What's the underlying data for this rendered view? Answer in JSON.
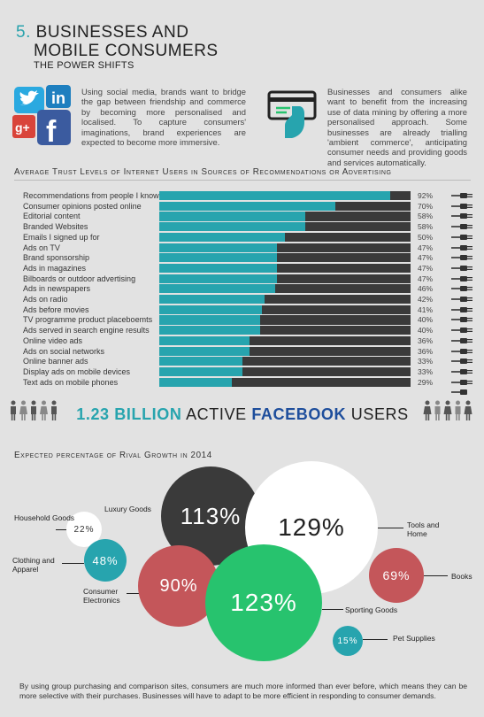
{
  "header": {
    "number": "5.",
    "title_line1": "Businesses and",
    "title_line2": "Mobile Consumers",
    "subtitle": "The Power Shifts"
  },
  "intro": {
    "left_text": "Using social media, brands want to bridge the gap between friendship and commerce by becoming more personalised and localised. To capture consumers' imaginations, brand experiences are expected to become more immersive.",
    "right_text": "Businesses and consumers alike want to benefit from the increasing use of data mining by offering a more personalised approach. Some businesses are already trialling 'ambient commerce', anticipating consumer needs and providing goods and services automatically."
  },
  "trust_section": {
    "heading": "Average Trust Levels of Internet Users in Sources of Recommendations or Advertising"
  },
  "facebook": {
    "number": "1.23 billion",
    "active": "active",
    "brand": "Facebook",
    "users": "users"
  },
  "growth_section": {
    "heading": "Expected percentage of Rival Growth in 2014"
  },
  "footer": {
    "text": "By using group purchasing and comparison sites, consumers are much more informed than ever before, which means they can be more selective with their purchases. Businesses will have to adapt to be more efficient in responding to consumer demands."
  },
  "colors": {
    "teal": "#27a4ae",
    "dark": "#3a3a3a",
    "red": "#c4565a",
    "green": "#27c36e",
    "white": "#ffffff"
  },
  "chart_data": [
    {
      "type": "bar",
      "title": "Average Trust Levels of Internet Users in Sources of Recommendations or Advertising",
      "categories": [
        "Recommendations from people I know",
        "Consumer opinions posted online",
        "Editorial content",
        "Branded Websites",
        "Emails I signed up for",
        "Ads on TV",
        "Brand sponsorship",
        "Ads in magazines",
        "Bilboards or outdoor advertising",
        "Ads in newspapers",
        "Ads on radio",
        "Ads before movies",
        "TV programme product placeboemts",
        "Ads served in search engine results",
        "Online video ads",
        "Ads on social networks",
        "Online banner ads",
        "Display ads on mobile devices",
        "Text ads on mobile phones"
      ],
      "values": [
        92,
        70,
        58,
        58,
        50,
        47,
        47,
        47,
        47,
        46,
        42,
        41,
        40,
        40,
        36,
        36,
        33,
        33,
        29
      ],
      "value_labels": [
        "92%",
        "70%",
        "58%",
        "58%",
        "50%",
        "47%",
        "47%",
        "47%",
        "47%",
        "46%",
        "42%",
        "41%",
        "40%",
        "40%",
        "36%",
        "36%",
        "33%",
        "33%",
        "29%"
      ],
      "xlim": [
        0,
        100
      ]
    },
    {
      "type": "bubble",
      "title": "Expected percentage of Rival Growth in 2014",
      "items": [
        {
          "name": "Household Goods",
          "value": 22,
          "label": "22%",
          "color": "#ffffff"
        },
        {
          "name": "Luxury Goods",
          "value": 113,
          "label": "113%",
          "color": "#3a3a3a"
        },
        {
          "name": "Tools and Home",
          "value": 129,
          "label": "129%",
          "color": "#ffffff"
        },
        {
          "name": "Clothing and Apparel",
          "value": 48,
          "label": "48%",
          "color": "#27a4ae"
        },
        {
          "name": "Consumer Electronics",
          "value": 90,
          "label": "90%",
          "color": "#c4565a"
        },
        {
          "name": "Sporting Goods",
          "value": 123,
          "label": "123%",
          "color": "#27c36e"
        },
        {
          "name": "Books",
          "value": 69,
          "label": "69%",
          "color": "#c4565a"
        },
        {
          "name": "Pet Supplies",
          "value": 15,
          "label": "15%",
          "color": "#27a4ae"
        }
      ]
    }
  ]
}
